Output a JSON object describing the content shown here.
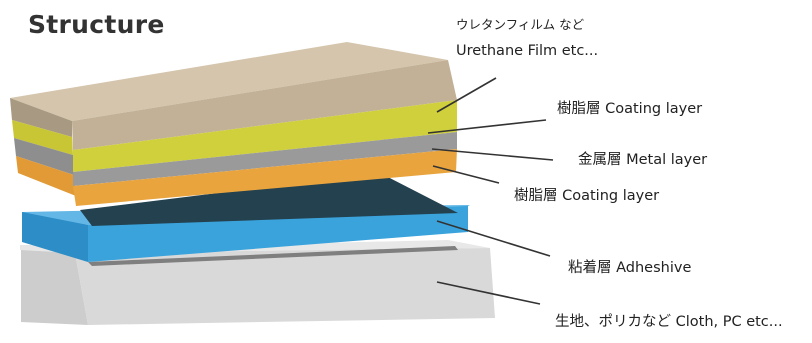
{
  "title": "Structure",
  "labels": {
    "urethane_jp": "ウレタンフィルム など",
    "urethane_en": "Urethane  Film etc...",
    "coating_top": "樹脂層  Coating layer",
    "metal": "金属層  Metal layer",
    "coating_bottom": "樹脂層  Coating layer",
    "adhesive": "粘着層  Adheshive",
    "cloth": "生地、ポリカなど  Cloth,  PC  etc..."
  },
  "colors": {
    "film_top": "#d4c5ac",
    "film_front": "#c2b196",
    "film_side": "#a89a82",
    "coating_yellow": "#cfd03c",
    "metal_gray": "#9a9a9a",
    "coating_orange": "#e9a43e",
    "dark_panel": "#24414f",
    "adhesive_blue": "#3aa3dc",
    "cloth_gray": "#d9d9d9",
    "leader": "#333333"
  }
}
